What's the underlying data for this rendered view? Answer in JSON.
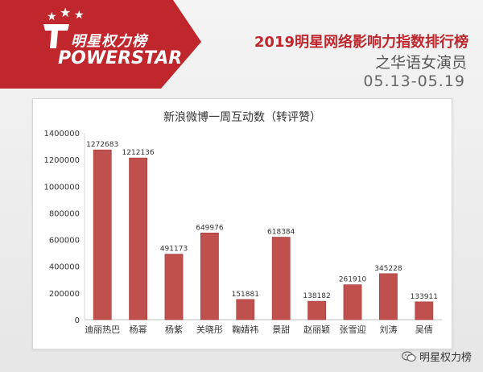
{
  "header": {
    "logo_cn": "明星权力榜",
    "logo_en": "POWERSTAR",
    "title": "2019明星网络影响力指数排行榜",
    "subtitle": "之华语女演员",
    "date_range": "05.13-05.19"
  },
  "watermark": {
    "text": "明星权力榜",
    "icon": "wechat-icon"
  },
  "colors": {
    "brand_red": "#c0272d",
    "bar": "#c0504d",
    "bar_dark": "#a33b38"
  },
  "chart_data": {
    "type": "bar",
    "title": "新浪微博一周互动数（转评赞）",
    "categories": [
      "迪丽热巴",
      "杨幂",
      "杨紫",
      "关晓彤",
      "鞠婧祎",
      "景甜",
      "赵丽颖",
      "张雪迎",
      "刘涛",
      "吴倩"
    ],
    "values": [
      1272683,
      1212136,
      491173,
      649976,
      151881,
      618384,
      138182,
      261910,
      345228,
      133911
    ],
    "ylim": [
      0,
      1400000
    ],
    "yticks": [
      0,
      200000,
      400000,
      600000,
      800000,
      1000000,
      1200000,
      1400000
    ],
    "xlabel": "",
    "ylabel": "",
    "grid": false,
    "legend": "none",
    "data_labels": true
  }
}
